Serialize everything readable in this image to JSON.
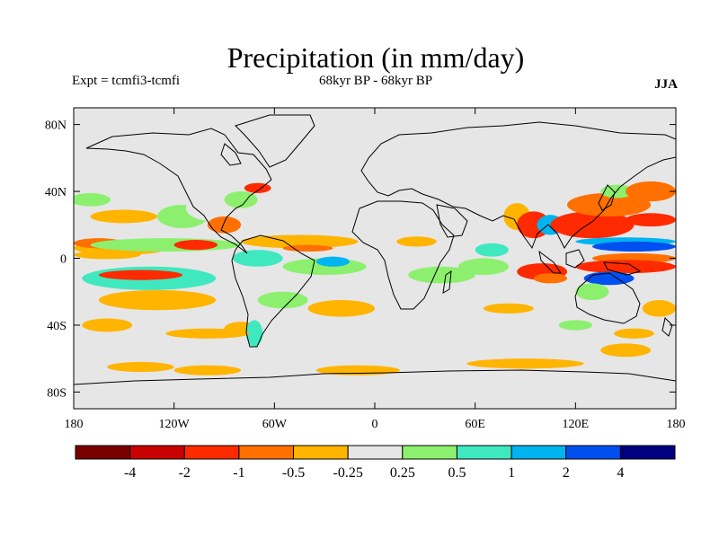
{
  "chart_data": {
    "type": "heatmap",
    "title": "Precipitation (in mm/day)",
    "subtitle_left": "Expt = tcmfi3-tcmfi",
    "subtitle_center": "68kyr BP - 68kyr BP",
    "season": "JJA",
    "x_ticks": [
      "180",
      "120W",
      "60W",
      "0",
      "60E",
      "120E",
      "180"
    ],
    "x_tick_values": [
      -180,
      -120,
      -60,
      0,
      60,
      120,
      180
    ],
    "y_ticks": [
      "80N",
      "40N",
      "0",
      "40S",
      "80S"
    ],
    "y_tick_values": [
      80,
      40,
      0,
      -40,
      -80
    ],
    "xlim": [
      -180,
      180
    ],
    "ylim": [
      -90,
      90
    ],
    "colorbar": {
      "colors": [
        "#7a0000",
        "#c80000",
        "#ff2a00",
        "#ff7000",
        "#ffb400",
        "#e6e6e6",
        "#8cf06e",
        "#40e8c0",
        "#00b4f0",
        "#0050f0",
        "#000080"
      ],
      "labels": [
        "-4",
        "-2",
        "-1",
        "-0.5",
        "-0.25",
        "0.25",
        "0.5",
        "1",
        "2",
        "4"
      ]
    },
    "anomaly_regions": [
      {
        "lon": -152,
        "lat": 6,
        "rx": 28,
        "ry": 4,
        "level": 4
      },
      {
        "lon": -165,
        "lat": 9,
        "rx": 15,
        "ry": 3,
        "level": 3
      },
      {
        "lon": -125,
        "lat": 8,
        "rx": 45,
        "ry": 4,
        "level": 6
      },
      {
        "lon": -107,
        "lat": 8,
        "rx": 13,
        "ry": 3,
        "level": 2
      },
      {
        "lon": -160,
        "lat": 2,
        "rx": 20,
        "ry": 2.5,
        "level": 4
      },
      {
        "lon": -135,
        "lat": -12,
        "rx": 40,
        "ry": 7,
        "level": 7
      },
      {
        "lon": -140,
        "lat": -10,
        "rx": 25,
        "ry": 3,
        "level": 2
      },
      {
        "lon": -130,
        "lat": -25,
        "rx": 35,
        "ry": 6,
        "level": 4
      },
      {
        "lon": -115,
        "lat": 25,
        "rx": 15,
        "ry": 7,
        "level": 6
      },
      {
        "lon": -95,
        "lat": 30,
        "rx": 18,
        "ry": 8,
        "level": 5
      },
      {
        "lon": -90,
        "lat": 20,
        "rx": 10,
        "ry": 5,
        "level": 3
      },
      {
        "lon": -80,
        "lat": 35,
        "rx": 10,
        "ry": 5,
        "level": 6
      },
      {
        "lon": -70,
        "lat": 42,
        "rx": 8,
        "ry": 3,
        "level": 2
      },
      {
        "lon": -150,
        "lat": 25,
        "rx": 20,
        "ry": 4,
        "level": 4
      },
      {
        "lon": -170,
        "lat": 35,
        "rx": 12,
        "ry": 4,
        "level": 6
      },
      {
        "lon": -45,
        "lat": 10,
        "rx": 35,
        "ry": 4,
        "level": 4
      },
      {
        "lon": -40,
        "lat": 6,
        "rx": 15,
        "ry": 2,
        "level": 3
      },
      {
        "lon": -70,
        "lat": 0,
        "rx": 15,
        "ry": 5,
        "level": 7
      },
      {
        "lon": -30,
        "lat": -5,
        "rx": 25,
        "ry": 5,
        "level": 6
      },
      {
        "lon": -25,
        "lat": -2,
        "rx": 10,
        "ry": 3,
        "level": 8
      },
      {
        "lon": -55,
        "lat": -25,
        "rx": 15,
        "ry": 5,
        "level": 6
      },
      {
        "lon": -20,
        "lat": -30,
        "rx": 20,
        "ry": 5,
        "level": 4
      },
      {
        "lon": -80,
        "lat": -42,
        "rx": 10,
        "ry": 4,
        "level": 4
      },
      {
        "lon": -72,
        "lat": -45,
        "rx": 5,
        "ry": 8,
        "level": 7
      },
      {
        "lon": -100,
        "lat": -45,
        "rx": 25,
        "ry": 3,
        "level": 4
      },
      {
        "lon": -160,
        "lat": -40,
        "rx": 15,
        "ry": 4,
        "level": 4
      },
      {
        "lon": -140,
        "lat": -65,
        "rx": 20,
        "ry": 3,
        "level": 4
      },
      {
        "lon": -100,
        "lat": -67,
        "rx": 20,
        "ry": 3,
        "level": 4
      },
      {
        "lon": -10,
        "lat": -67,
        "rx": 25,
        "ry": 3,
        "level": 4
      },
      {
        "lon": 90,
        "lat": -63,
        "rx": 35,
        "ry": 3,
        "level": 4
      },
      {
        "lon": 150,
        "lat": -55,
        "rx": 15,
        "ry": 4,
        "level": 4
      },
      {
        "lon": 25,
        "lat": 10,
        "rx": 12,
        "ry": 3,
        "level": 4
      },
      {
        "lon": 40,
        "lat": -10,
        "rx": 20,
        "ry": 5,
        "level": 6
      },
      {
        "lon": 65,
        "lat": -5,
        "rx": 15,
        "ry": 5,
        "level": 6
      },
      {
        "lon": 70,
        "lat": 5,
        "rx": 10,
        "ry": 4,
        "level": 7
      },
      {
        "lon": 85,
        "lat": 25,
        "rx": 8,
        "ry": 8,
        "level": 4
      },
      {
        "lon": 95,
        "lat": 20,
        "rx": 10,
        "ry": 8,
        "level": 2
      },
      {
        "lon": 80,
        "lat": -30,
        "rx": 15,
        "ry": 3,
        "level": 4
      },
      {
        "lon": 100,
        "lat": -8,
        "rx": 15,
        "ry": 5,
        "level": 2
      },
      {
        "lon": 105,
        "lat": -12,
        "rx": 10,
        "ry": 3,
        "level": 3
      },
      {
        "lon": 105,
        "lat": 20,
        "rx": 8,
        "ry": 6,
        "level": 8
      },
      {
        "lon": 130,
        "lat": 20,
        "rx": 25,
        "ry": 8,
        "level": 2
      },
      {
        "lon": 140,
        "lat": 32,
        "rx": 25,
        "ry": 7,
        "level": 3
      },
      {
        "lon": 145,
        "lat": 40,
        "rx": 10,
        "ry": 4,
        "level": 6
      },
      {
        "lon": 165,
        "lat": 40,
        "rx": 15,
        "ry": 6,
        "level": 3
      },
      {
        "lon": 165,
        "lat": 23,
        "rx": 15,
        "ry": 4,
        "level": 2
      },
      {
        "lon": 150,
        "lat": 10,
        "rx": 30,
        "ry": 2.5,
        "level": 8
      },
      {
        "lon": 155,
        "lat": 7,
        "rx": 25,
        "ry": 3,
        "level": 9
      },
      {
        "lon": 155,
        "lat": 0,
        "rx": 25,
        "ry": 3,
        "level": 3
      },
      {
        "lon": 150,
        "lat": -5,
        "rx": 30,
        "ry": 4,
        "level": 2
      },
      {
        "lon": 140,
        "lat": -12,
        "rx": 15,
        "ry": 4,
        "level": 9
      },
      {
        "lon": 130,
        "lat": -20,
        "rx": 10,
        "ry": 5,
        "level": 6
      },
      {
        "lon": 170,
        "lat": -30,
        "rx": 10,
        "ry": 5,
        "level": 4
      },
      {
        "lon": 120,
        "lat": -40,
        "rx": 10,
        "ry": 3,
        "level": 6
      },
      {
        "lon": 155,
        "lat": -45,
        "rx": 12,
        "ry": 3,
        "level": 4
      }
    ]
  }
}
